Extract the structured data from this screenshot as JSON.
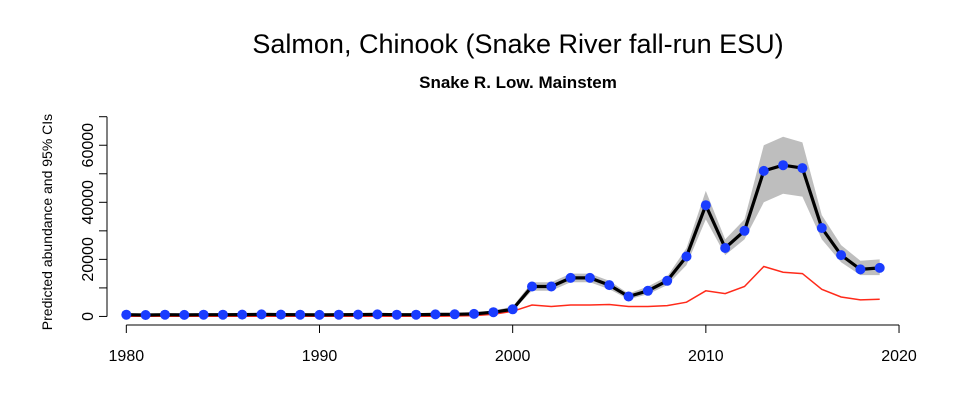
{
  "chart_data": {
    "type": "line",
    "title": "Salmon, Chinook (Snake River fall-run ESU)",
    "subtitle": "Snake R. Low. Mainstem",
    "xlabel": "",
    "ylabel": "Predicted abundance and 95% CIs",
    "xlim": [
      1979,
      2021.5
    ],
    "ylim": [
      -3000,
      72000
    ],
    "x_ticks": [
      1980,
      1990,
      2000,
      2010,
      2020
    ],
    "y_ticks": [
      0,
      10000,
      20000,
      30000,
      40000,
      50000,
      60000,
      70000
    ],
    "y_tick_labels": [
      "0",
      "",
      "20000",
      "",
      "40000",
      "",
      "60000",
      ""
    ],
    "colors": {
      "estimate": "#000000",
      "points": "#1a3cff",
      "ci_band": "#bebebe",
      "lower_line": "#ff2a1a"
    },
    "x": [
      1980,
      1981,
      1982,
      1983,
      1984,
      1985,
      1986,
      1987,
      1988,
      1989,
      1990,
      1991,
      1992,
      1993,
      1994,
      1995,
      1996,
      1997,
      1998,
      1999,
      2000,
      2001,
      2002,
      2003,
      2004,
      2005,
      2006,
      2007,
      2008,
      2009,
      2010,
      2011,
      2012,
      2013,
      2014,
      2015,
      2016,
      2017,
      2018,
      2019
    ],
    "series": [
      {
        "role": "estimate",
        "values": [
          600,
          500,
          600,
          550,
          600,
          620,
          650,
          700,
          650,
          600,
          550,
          600,
          650,
          700,
          600,
          620,
          700,
          750,
          900,
          1500,
          2500,
          10500,
          10500,
          13500,
          13500,
          11000,
          7000,
          9000,
          12500,
          21000,
          39000,
          24000,
          30000,
          51000,
          53000,
          52000,
          31000,
          21500,
          16500,
          17000
        ]
      },
      {
        "role": "ci_lower",
        "values": [
          300,
          250,
          300,
          280,
          300,
          300,
          320,
          350,
          320,
          300,
          280,
          300,
          320,
          350,
          300,
          300,
          350,
          380,
          500,
          1000,
          2000,
          9000,
          9000,
          12000,
          12000,
          9500,
          6000,
          7800,
          11000,
          18000,
          34000,
          21500,
          27000,
          40000,
          43000,
          42000,
          27000,
          19000,
          14500,
          14500
        ]
      },
      {
        "role": "ci_upper",
        "values": [
          1000,
          900,
          1000,
          950,
          1000,
          1000,
          1050,
          1100,
          1050,
          1000,
          950,
          1000,
          1050,
          1100,
          1000,
          1000,
          1100,
          1200,
          1400,
          2000,
          3500,
          12000,
          12000,
          15000,
          15000,
          12500,
          8000,
          10500,
          14000,
          24000,
          44000,
          27000,
          34000,
          60000,
          63000,
          61000,
          35500,
          25000,
          19500,
          20000
        ]
      },
      {
        "role": "lower_line",
        "values": [
          100,
          100,
          100,
          100,
          100,
          100,
          100,
          100,
          100,
          100,
          100,
          100,
          100,
          100,
          100,
          100,
          100,
          150,
          300,
          800,
          1800,
          4000,
          3500,
          4000,
          4000,
          4200,
          3500,
          3500,
          3800,
          5000,
          9000,
          8000,
          10500,
          17500,
          15500,
          15000,
          9500,
          6800,
          5800,
          6000
        ]
      }
    ]
  }
}
